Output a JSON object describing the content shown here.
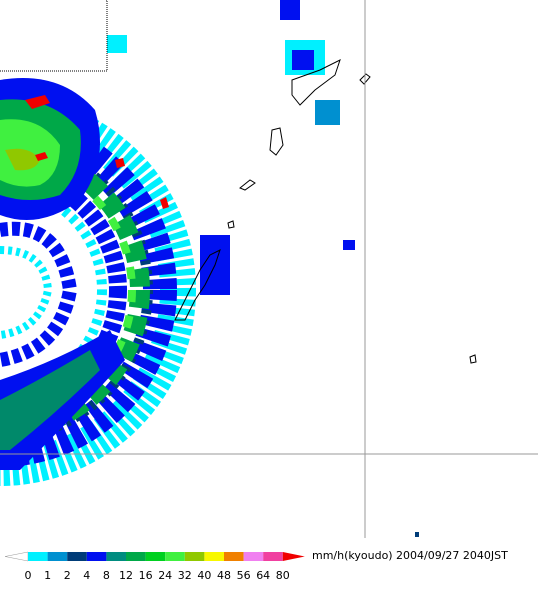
{
  "legend": {
    "ticks": [
      0,
      1,
      2,
      4,
      8,
      12,
      16,
      24,
      32,
      40,
      48,
      56,
      64,
      80
    ],
    "colors": [
      "#00f0ff",
      "#0090d0",
      "#003c78",
      "#0010f0",
      "#008c80",
      "#00a848",
      "#00d020",
      "#40f040",
      "#90c800",
      "#f8f800",
      "#f08000",
      "#f080f0",
      "#f040a0"
    ],
    "under_color": "#ffffff",
    "over_color": "#f00000",
    "unit": "mm/h(kyoudo)",
    "timestamp": "2004/09/27 2040JST"
  }
}
